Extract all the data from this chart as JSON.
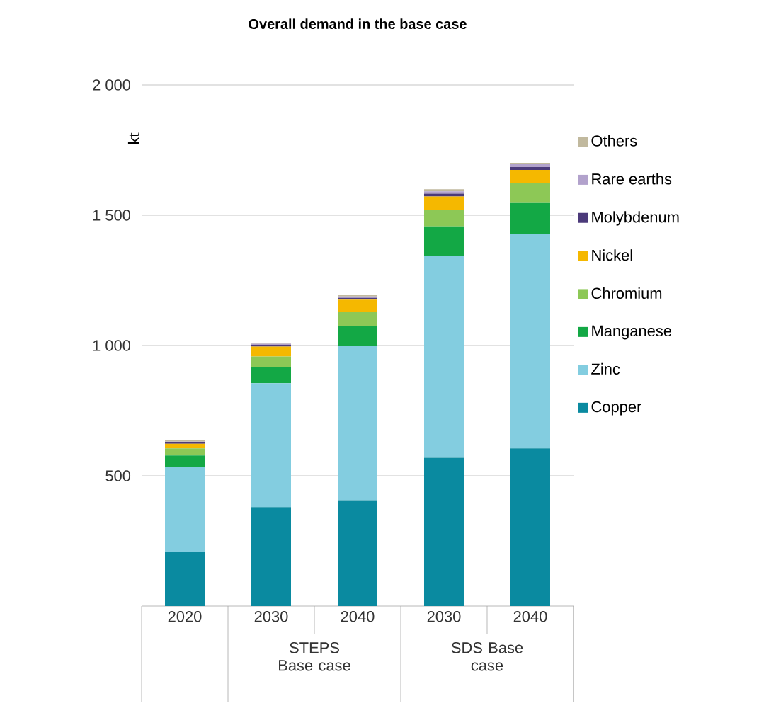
{
  "chart_data": {
    "type": "bar",
    "stacked": true,
    "title": "Overall demand in the base case",
    "ylabel": "kt",
    "categories": [
      "2020",
      "2030",
      "2040",
      "2030",
      "2040"
    ],
    "annotations": [
      "STEPS Base case",
      "SDS Base case"
    ],
    "series": [
      {
        "name": "Copper",
        "color": "#0a8aa0",
        "values": [
          207,
          380,
          406,
          569,
          605
        ]
      },
      {
        "name": "Zinc",
        "color": "#83cde0",
        "values": [
          326,
          475,
          594,
          775,
          824
        ]
      },
      {
        "name": "Manganese",
        "color": "#13a845",
        "values": [
          45,
          63,
          76,
          113,
          118
        ]
      },
      {
        "name": "Chromium",
        "color": "#8dc856",
        "values": [
          27,
          40,
          54,
          63,
          76
        ]
      },
      {
        "name": "Nickel",
        "color": "#f5b800",
        "values": [
          18,
          38,
          46,
          52,
          51
        ]
      },
      {
        "name": "Molybdenum",
        "color": "#4b3a7a",
        "values": [
          5,
          7,
          7,
          11,
          11
        ]
      },
      {
        "name": "Rare earths",
        "color": "#b2a2cc",
        "values": [
          3,
          4,
          5,
          9,
          11
        ]
      },
      {
        "name": "Others",
        "color": "#c1b99e",
        "values": [
          5,
          4,
          5,
          8,
          5
        ]
      }
    ],
    "ylim": [
      0,
      2000
    ],
    "yticks": [
      {
        "value": 500,
        "label": "500"
      },
      {
        "value": 1000,
        "label": "1 000"
      },
      {
        "value": 1500,
        "label": "1 500"
      },
      {
        "value": 2000,
        "label": "2 000"
      }
    ],
    "grid": "y",
    "legend": "right"
  }
}
